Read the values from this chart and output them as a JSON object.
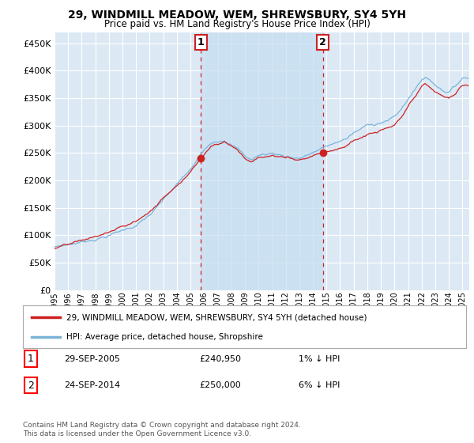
{
  "title": "29, WINDMILL MEADOW, WEM, SHREWSBURY, SY4 5YH",
  "subtitle": "Price paid vs. HM Land Registry's House Price Index (HPI)",
  "ytick_values": [
    0,
    50000,
    100000,
    150000,
    200000,
    250000,
    300000,
    350000,
    400000,
    450000
  ],
  "ylim": [
    0,
    470000
  ],
  "xlim_start": 1995.0,
  "xlim_end": 2025.5,
  "bg_color": "#dce9f5",
  "grid_color": "#ffffff",
  "hpi_color": "#7ab4d8",
  "price_color": "#cc2222",
  "shade_color": "#c5ddf0",
  "sale1_year": 2005.75,
  "sale1_price": 240950,
  "sale2_year": 2014.73,
  "sale2_price": 250000,
  "legend_label1": "29, WINDMILL MEADOW, WEM, SHREWSBURY, SY4 5YH (detached house)",
  "legend_label2": "HPI: Average price, detached house, Shropshire",
  "table_row1_num": "1",
  "table_row1_date": "29-SEP-2005",
  "table_row1_price": "£240,950",
  "table_row1_hpi": "1% ↓ HPI",
  "table_row2_num": "2",
  "table_row2_date": "24-SEP-2014",
  "table_row2_price": "£250,000",
  "table_row2_hpi": "6% ↓ HPI",
  "footnote": "Contains HM Land Registry data © Crown copyright and database right 2024.\nThis data is licensed under the Open Government Licence v3.0.",
  "xtick_years": [
    1995,
    1996,
    1997,
    1998,
    1999,
    2000,
    2001,
    2002,
    2003,
    2004,
    2005,
    2006,
    2007,
    2008,
    2009,
    2010,
    2011,
    2012,
    2013,
    2014,
    2015,
    2016,
    2017,
    2018,
    2019,
    2020,
    2021,
    2022,
    2023,
    2024,
    2025
  ]
}
